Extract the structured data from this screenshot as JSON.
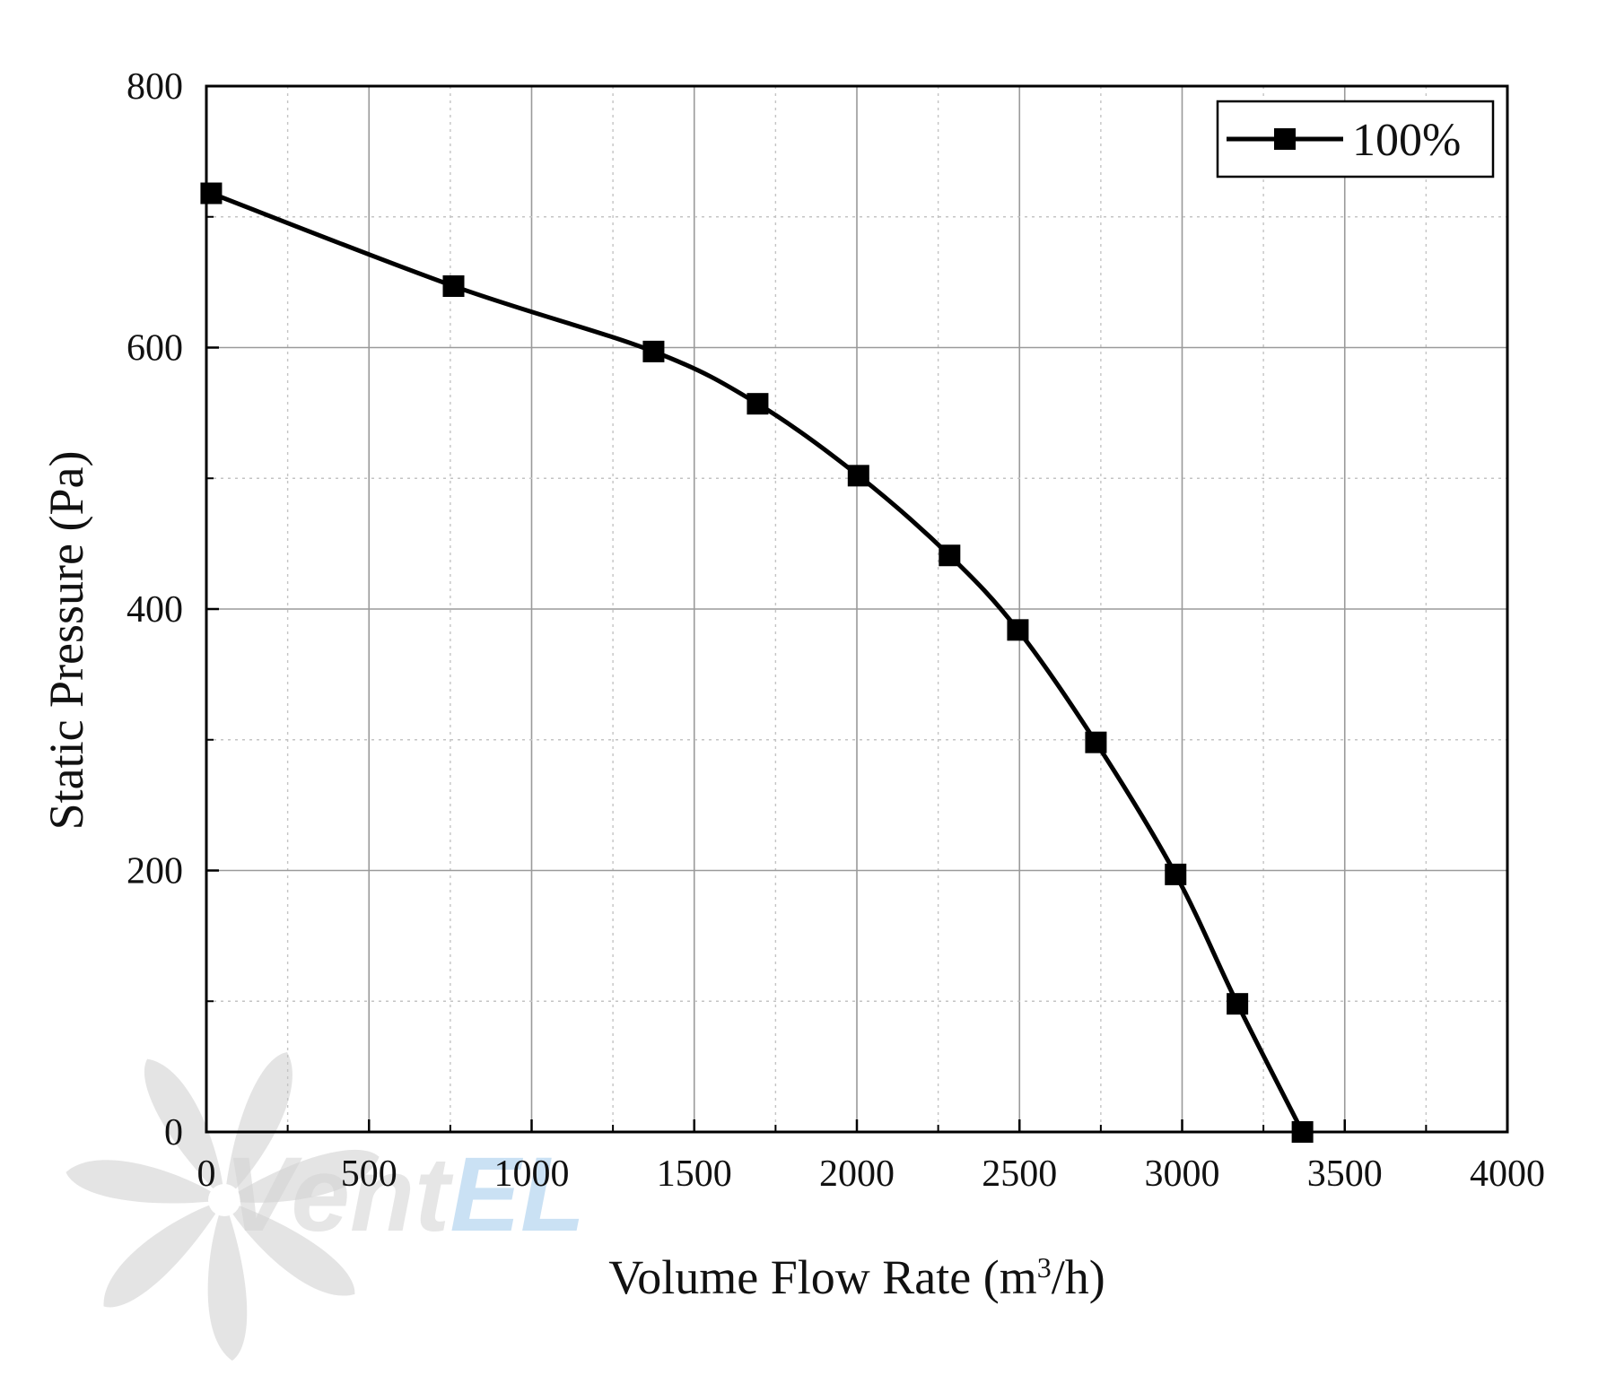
{
  "chart_data": {
    "type": "line",
    "xlabel": "Volume Flow Rate (m",
    "xlabel_sup": "3",
    "xlabel_tail": "/h)",
    "ylabel": "Static Pressure (Pa)",
    "xlim": [
      0,
      4000
    ],
    "ylim": [
      0,
      800
    ],
    "xticks": [
      "0",
      "500",
      "1000",
      "1500",
      "2000",
      "2500",
      "3000",
      "3500",
      "4000"
    ],
    "yticks": [
      "0",
      "200",
      "400",
      "600",
      "800"
    ],
    "grid": true,
    "legend_position": "top-right",
    "series": [
      {
        "name": "100%",
        "color": "#000000",
        "marker": "square",
        "x": [
          15,
          760,
          1375,
          1695,
          2005,
          2285,
          2495,
          2735,
          2980,
          3170,
          3370
        ],
        "y": [
          718,
          647,
          597,
          557,
          502,
          441,
          384,
          298,
          197,
          98,
          0
        ]
      }
    ]
  },
  "watermark": {
    "text": "VentEL",
    "colors": [
      "#d3d3d3",
      "#9fc9ec"
    ]
  }
}
